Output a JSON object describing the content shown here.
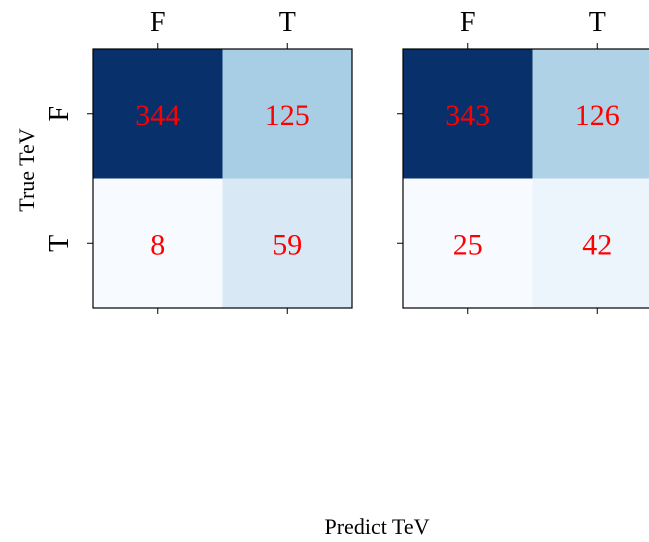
{
  "figure": {
    "ylabel": "True TeV",
    "xlabel": "Predict TeV"
  },
  "chart_data": [
    {
      "type": "heatmap",
      "x_categories": [
        "F",
        "T"
      ],
      "y_categories": [
        "F",
        "T"
      ],
      "values": [
        [
          344,
          125
        ],
        [
          8,
          59
        ]
      ],
      "colormap": "Blues",
      "value_label_color": "#ff0000"
    },
    {
      "type": "heatmap",
      "x_categories": [
        "F",
        "T"
      ],
      "y_categories": [
        "F",
        "T"
      ],
      "values": [
        [
          343,
          126
        ],
        [
          25,
          42
        ]
      ],
      "colormap": "Blues",
      "value_label_color": "#ff0000"
    }
  ]
}
